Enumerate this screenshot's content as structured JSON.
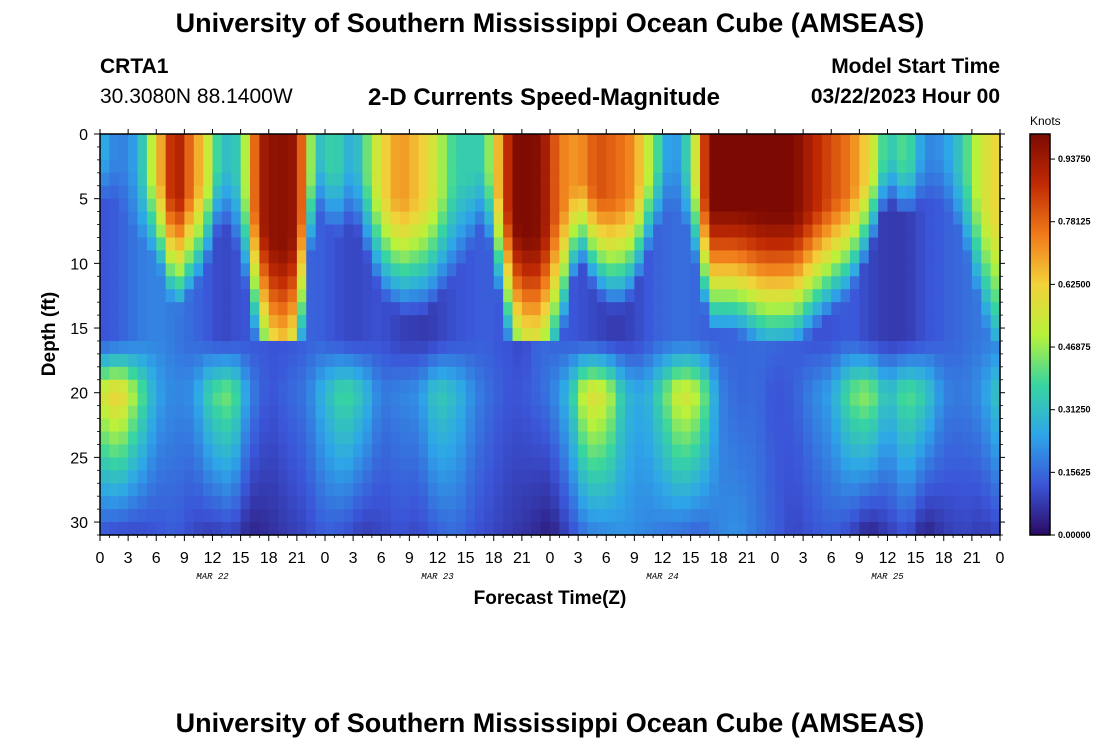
{
  "header": {
    "title": "University of Southern Mississippi Ocean Cube (AMSEAS)",
    "station": "CRTA1",
    "latlon": "30.3080N  88.1400W",
    "subtitle": "2-D Currents Speed-Magnitude",
    "model_start_label": "Model Start Time",
    "model_start_value": "03/22/2023 Hour 00"
  },
  "footer": {
    "title": "University of Southern Mississippi Ocean Cube (AMSEAS)"
  },
  "colors": {
    "colormap": [
      "#2a0a63",
      "#3b55d8",
      "#2ea6e8",
      "#38d5a0",
      "#b9f23a",
      "#f2d23a",
      "#f07a1a",
      "#c02a03",
      "#7c0a02"
    ]
  },
  "chart_data": {
    "type": "heatmap",
    "title": "2-D Currents Speed-Magnitude",
    "xlabel": "Forecast Time(Z)",
    "ylabel": "Depth (ft)",
    "colorbar_label": "Knots",
    "x_tick_labels": [
      "0",
      "3",
      "6",
      "9",
      "12",
      "15",
      "18",
      "21",
      "0",
      "3",
      "6",
      "9",
      "12",
      "15",
      "18",
      "21",
      "0",
      "3",
      "6",
      "9",
      "12",
      "15",
      "18",
      "21",
      "0",
      "3",
      "6",
      "9",
      "12",
      "15",
      "18",
      "21",
      "0"
    ],
    "date_labels": [
      "MAR 22",
      "MAR 23",
      "MAR 24",
      "MAR 25"
    ],
    "y_ticks": [
      0,
      5,
      10,
      15,
      20,
      25,
      30
    ],
    "ylim": [
      0,
      31
    ],
    "x_range_hours": [
      0,
      96
    ],
    "colorbar_ticks": [
      "0.00000",
      "0.15625",
      "0.31250",
      "0.46875",
      "0.62500",
      "0.78125",
      "0.93750"
    ],
    "value_range": [
      0,
      1.0
    ],
    "grid": false,
    "upper_layer": {
      "depth_range_ft": [
        0,
        16
      ],
      "hours": [
        0,
        2,
        4,
        6,
        8,
        11,
        13,
        15,
        17,
        19,
        21,
        23,
        25,
        27,
        30,
        32,
        35,
        38,
        41,
        44,
        45,
        47,
        49,
        51,
        53,
        55,
        57,
        59,
        61,
        63,
        65,
        68,
        71,
        74,
        76,
        78,
        80,
        82,
        84,
        86,
        88,
        90,
        92,
        94,
        96
      ],
      "surface_knots": [
        0.28,
        0.18,
        0.25,
        0.6,
        0.95,
        0.62,
        0.3,
        0.35,
        0.92,
        0.98,
        0.95,
        0.3,
        0.38,
        0.25,
        0.6,
        0.72,
        0.6,
        0.35,
        0.35,
        0.98,
        1.0,
        0.98,
        0.75,
        0.7,
        0.82,
        0.78,
        0.72,
        0.45,
        0.18,
        0.4,
        1.0,
        1.0,
        1.0,
        1.0,
        0.9,
        0.82,
        0.75,
        0.6,
        0.32,
        0.42,
        0.2,
        0.22,
        0.35,
        0.55,
        0.62
      ],
      "depth_extent_ft": [
        3,
        3,
        5,
        6,
        9,
        7,
        4,
        6,
        12,
        16,
        14,
        3,
        5,
        4,
        8,
        9,
        9,
        7,
        4,
        12,
        14,
        14,
        11,
        6,
        8,
        9,
        8,
        5,
        3,
        5,
        10,
        10,
        11,
        11,
        10,
        9,
        8,
        6,
        3,
        4,
        3,
        3,
        5,
        9,
        12
      ],
      "mid_knots": [
        0.12,
        0.14,
        0.18,
        0.2,
        0.18,
        0.14,
        0.1,
        0.12,
        0.13,
        0.12,
        0.13,
        0.15,
        0.12,
        0.1,
        0.12,
        0.09,
        0.08,
        0.12,
        0.14,
        0.12,
        0.1,
        0.16,
        0.14,
        0.12,
        0.1,
        0.08,
        0.1,
        0.14,
        0.16,
        0.16,
        0.14,
        0.15,
        0.16,
        0.14,
        0.12,
        0.12,
        0.14,
        0.1,
        0.08,
        0.08,
        0.12,
        0.14,
        0.16,
        0.18,
        0.2
      ]
    },
    "lower_layer": {
      "hours": [
        0,
        2,
        4,
        6,
        8,
        10,
        12,
        14,
        16,
        18,
        20,
        22,
        24,
        26,
        28,
        30,
        32,
        34,
        36,
        38,
        40,
        42,
        44,
        46,
        48,
        50,
        52,
        54,
        56,
        58,
        60,
        62,
        64,
        66,
        68,
        70,
        72,
        74,
        76,
        78,
        80,
        82,
        84,
        86,
        88,
        90,
        92,
        94,
        96
      ],
      "core_knots_at_20ft": [
        0.55,
        0.65,
        0.45,
        0.25,
        0.2,
        0.22,
        0.4,
        0.45,
        0.2,
        0.12,
        0.15,
        0.18,
        0.3,
        0.4,
        0.32,
        0.18,
        0.2,
        0.22,
        0.35,
        0.3,
        0.2,
        0.15,
        0.12,
        0.14,
        0.18,
        0.3,
        0.6,
        0.55,
        0.3,
        0.25,
        0.4,
        0.58,
        0.5,
        0.2,
        0.15,
        0.16,
        0.12,
        0.14,
        0.2,
        0.25,
        0.42,
        0.48,
        0.3,
        0.42,
        0.35,
        0.2,
        0.18,
        0.22,
        0.35
      ],
      "bottom_knots_at_30ft": [
        0.12,
        0.1,
        0.1,
        0.12,
        0.14,
        0.1,
        0.08,
        0.1,
        0.04,
        0.06,
        0.08,
        0.1,
        0.14,
        0.12,
        0.08,
        0.1,
        0.12,
        0.1,
        0.14,
        0.16,
        0.12,
        0.1,
        0.08,
        0.06,
        0.03,
        0.1,
        0.18,
        0.2,
        0.22,
        0.2,
        0.18,
        0.16,
        0.14,
        0.2,
        0.22,
        0.18,
        0.14,
        0.1,
        0.12,
        0.14,
        0.1,
        0.03,
        0.08,
        0.12,
        0.03,
        0.08,
        0.1,
        0.08,
        0.1
      ]
    }
  }
}
